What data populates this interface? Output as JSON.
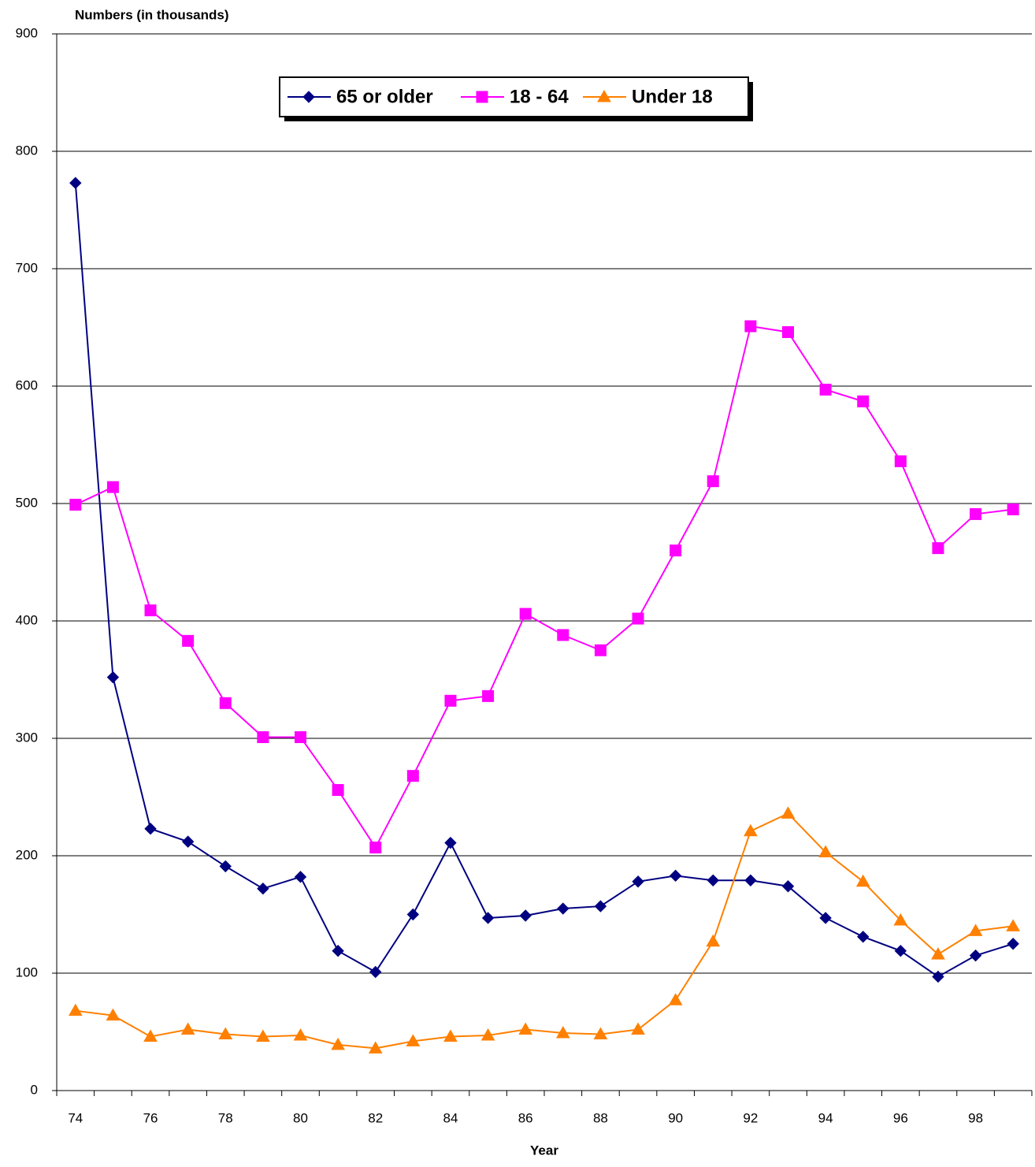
{
  "chart_data": {
    "type": "line",
    "ylabel": "Numbers (in thousands)",
    "xlabel": "Year",
    "categories": [
      "74",
      null,
      "76",
      null,
      "78",
      null,
      "80",
      null,
      "82",
      null,
      "84",
      null,
      "86",
      null,
      "88",
      null,
      "90",
      null,
      "92",
      null,
      "94",
      null,
      "96",
      null,
      "98",
      null
    ],
    "series": [
      {
        "name": "65 or older",
        "color": "#000080",
        "marker": "diamond",
        "values": [
          773,
          352,
          223,
          212,
          191,
          172,
          182,
          119,
          101,
          150,
          211,
          147,
          149,
          155,
          157,
          178,
          183,
          179,
          179,
          174,
          147,
          131,
          119,
          97,
          115,
          125
        ]
      },
      {
        "name": "18 - 64",
        "color": "#ff00ff",
        "marker": "square",
        "values": [
          499,
          514,
          409,
          383,
          330,
          301,
          301,
          256,
          207,
          268,
          332,
          336,
          406,
          388,
          375,
          402,
          460,
          519,
          651,
          646,
          597,
          587,
          536,
          462,
          491,
          495
        ]
      },
      {
        "name": "Under 18",
        "color": "#ff8000",
        "marker": "triangle",
        "values": [
          68,
          64,
          46,
          52,
          48,
          46,
          47,
          39,
          36,
          42,
          46,
          47,
          52,
          49,
          48,
          52,
          77,
          127,
          221,
          236,
          203,
          178,
          145,
          116,
          136,
          140
        ]
      }
    ],
    "ylim": [
      0,
      900
    ],
    "yticks": [
      0,
      100,
      200,
      300,
      400,
      500,
      600,
      700,
      800,
      900
    ],
    "grid": true,
    "legend": "top"
  }
}
